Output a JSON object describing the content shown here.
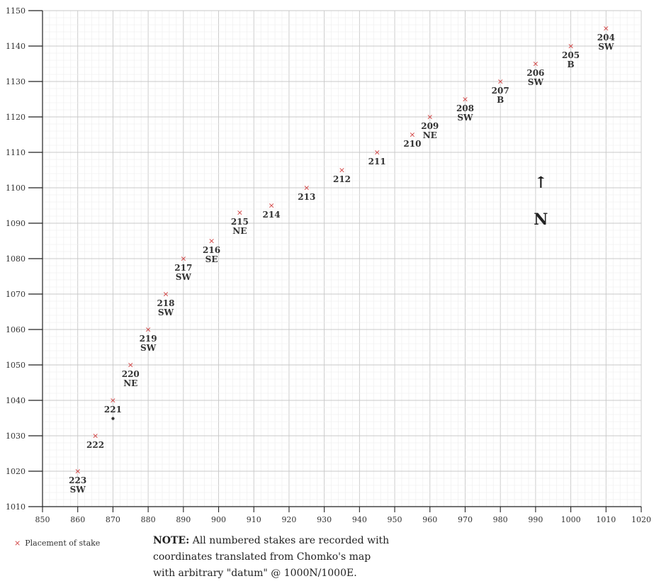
{
  "chart_data": {
    "type": "scatter",
    "xlim": [
      850,
      1020
    ],
    "ylim": [
      1010,
      1150
    ],
    "x_ticks": [
      "850",
      "860",
      "870",
      "880",
      "890",
      "900",
      "910",
      "920",
      "930",
      "940",
      "950",
      "960",
      "970",
      "980",
      "990",
      "1000",
      "1010",
      "1020"
    ],
    "y_ticks": [
      "1010",
      "1020",
      "1030",
      "1040",
      "1050",
      "1060",
      "1070",
      "1080",
      "1090",
      "1100",
      "1110",
      "1120",
      "1130",
      "1140",
      "1150"
    ],
    "grid": true,
    "marker_color": "#d04040",
    "points": [
      {
        "x": 1010,
        "y": 1145,
        "label": "204",
        "sub": "SW"
      },
      {
        "x": 1000,
        "y": 1140,
        "label": "205",
        "sub": "B"
      },
      {
        "x": 990,
        "y": 1135,
        "label": "206",
        "sub": "SW"
      },
      {
        "x": 980,
        "y": 1130,
        "label": "207",
        "sub": "B"
      },
      {
        "x": 970,
        "y": 1125,
        "label": "208",
        "sub": "SW"
      },
      {
        "x": 960,
        "y": 1120,
        "label": "209",
        "sub": "NE"
      },
      {
        "x": 955,
        "y": 1115,
        "label": "210",
        "sub": ""
      },
      {
        "x": 945,
        "y": 1110,
        "label": "211",
        "sub": ""
      },
      {
        "x": 935,
        "y": 1105,
        "label": "212",
        "sub": ""
      },
      {
        "x": 925,
        "y": 1100,
        "label": "213",
        "sub": ""
      },
      {
        "x": 915,
        "y": 1095,
        "label": "214",
        "sub": ""
      },
      {
        "x": 906,
        "y": 1093,
        "label": "215",
        "sub": "NE"
      },
      {
        "x": 898,
        "y": 1085,
        "label": "216",
        "sub": "SE"
      },
      {
        "x": 890,
        "y": 1080,
        "label": "217",
        "sub": "SW"
      },
      {
        "x": 885,
        "y": 1070,
        "label": "218",
        "sub": "SW"
      },
      {
        "x": 880,
        "y": 1060,
        "label": "219",
        "sub": "SW"
      },
      {
        "x": 875,
        "y": 1050,
        "label": "220",
        "sub": "NE"
      },
      {
        "x": 870,
        "y": 1040,
        "label": "221",
        "sub": "•"
      },
      {
        "x": 865,
        "y": 1030,
        "label": "222",
        "sub": ""
      },
      {
        "x": 860,
        "y": 1020,
        "label": "223",
        "sub": "SW"
      }
    ],
    "north_label": "N"
  },
  "legend": {
    "marker": "×",
    "text": "Placement of stake"
  },
  "note": {
    "heading": "NOTE:",
    "line1": "All numbered stakes are recorded with",
    "line2": "coordinates translated from Chomko's map",
    "line3": "with arbitrary \"datum\" @ 1000N/1000E."
  }
}
